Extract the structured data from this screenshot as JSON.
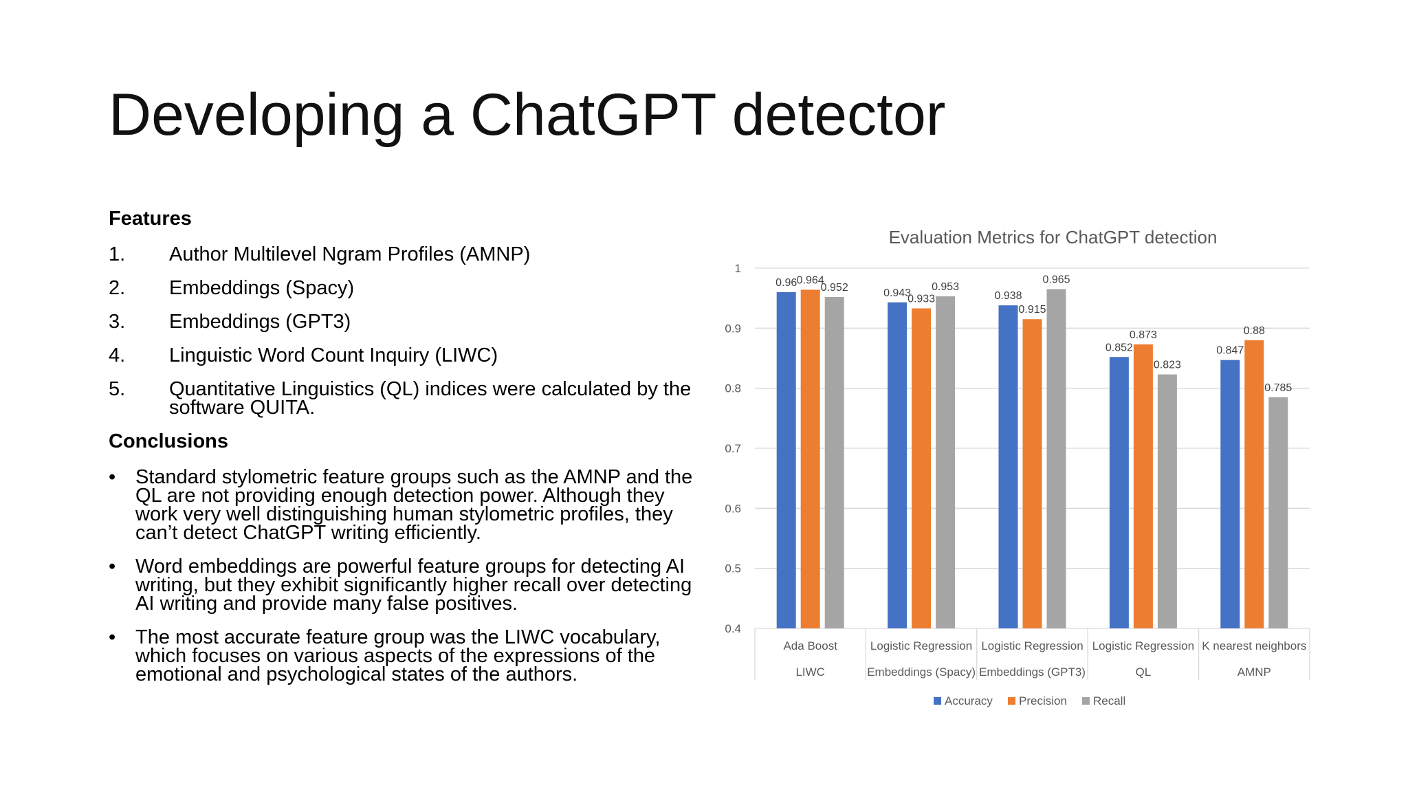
{
  "slide": {
    "title": "Developing a ChatGPT detector"
  },
  "features": {
    "heading": "Features",
    "items": [
      {
        "num": "1.",
        "text": "Author Multilevel Ngram Profiles (AMNP)"
      },
      {
        "num": "2.",
        "text": "Embeddings (Spacy)"
      },
      {
        "num": "3.",
        "text": "Embeddings (GPT3)"
      },
      {
        "num": "4.",
        "text": "Linguistic Word Count Inquiry (LIWC)"
      },
      {
        "num": "5.",
        "text": "Quantitative Linguistics (QL) indices were calculated by the software QUITA."
      }
    ]
  },
  "conclusions": {
    "heading": "Conclusions",
    "bullet": "•",
    "items": [
      "Standard stylometric feature groups such as the AMNP and the QL are not providing enough detection power. Although they work very well distinguishing human stylometric profiles, they can’t detect ChatGPT writing efficiently.",
      "Word embeddings are powerful feature groups for detecting AI writing, but they exhibit significantly higher recall over detecting AI writing and provide many false positives.",
      "The most accurate feature group was the LIWC vocabulary, which focuses on various aspects of the expressions of the emotional and psychological states of the authors."
    ]
  },
  "chart_data": {
    "type": "bar",
    "title": "Evaluation Metrics for ChatGPT detection",
    "categories": [
      [
        "Ada Boost",
        "LIWC"
      ],
      [
        "Logistic Regression",
        "Embeddings (Spacy)"
      ],
      [
        "Logistic Regression",
        "Embeddings (GPT3)"
      ],
      [
        "Logistic Regression",
        "QL"
      ],
      [
        "K nearest neighbors",
        "AMNP"
      ]
    ],
    "series": [
      {
        "name": "Accuracy",
        "color": "#4472C4",
        "values": [
          0.96,
          0.943,
          0.938,
          0.852,
          0.847
        ]
      },
      {
        "name": "Precision",
        "color": "#ED7D31",
        "values": [
          0.964,
          0.933,
          0.915,
          0.873,
          0.88
        ]
      },
      {
        "name": "Recall",
        "color": "#A5A5A5",
        "values": [
          0.952,
          0.953,
          0.965,
          0.823,
          0.785
        ]
      }
    ],
    "ylim": [
      0.4,
      1
    ],
    "yticks": [
      "0.4",
      "0.5",
      "0.6",
      "0.7",
      "0.8",
      "0.9",
      "1"
    ],
    "grid": true,
    "legend": "bottom"
  }
}
